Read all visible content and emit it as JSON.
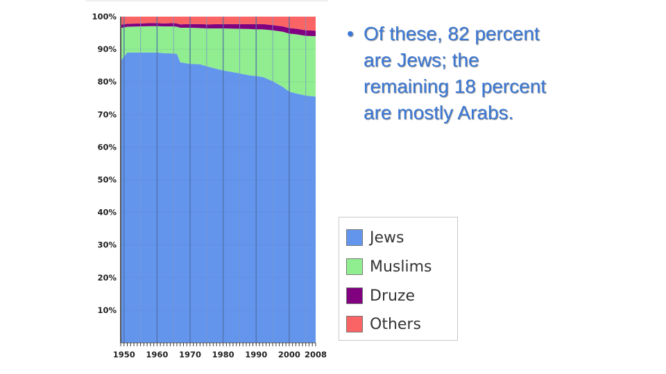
{
  "chart_data": {
    "type": "area",
    "stacked": true,
    "normalized": true,
    "x": [
      1949,
      1951,
      1955,
      1958,
      1960,
      1962,
      1965,
      1966,
      1967,
      1970,
      1973,
      1975,
      1980,
      1983,
      1988,
      1990,
      1992,
      1995,
      1998,
      2000,
      2002,
      2005,
      2008
    ],
    "series": [
      {
        "name": "Jews",
        "color": "#6495ed",
        "values": [
          86.5,
          89,
          89,
          89,
          89,
          88.8,
          88.7,
          88.6,
          86,
          85.5,
          85.4,
          84.8,
          83.5,
          83.0,
          82.0,
          81.8,
          81.5,
          80.2,
          78.5,
          77.0,
          76.5,
          75.8,
          75.5
        ]
      },
      {
        "name": "Muslims",
        "color": "#90ee90",
        "values": [
          10,
          7.9,
          8.0,
          8.1,
          8.1,
          8.2,
          8.3,
          8.3,
          10.6,
          11.1,
          11.1,
          11.6,
          12.9,
          13.3,
          14.2,
          14.3,
          14.6,
          15.6,
          16.9,
          17.8,
          18.1,
          18.3,
          18.5
        ]
      },
      {
        "name": "Druze",
        "color": "#800080",
        "values": [
          1.0,
          0.9,
          0.9,
          0.9,
          0.9,
          0.9,
          1.0,
          1.0,
          1.0,
          1.1,
          1.2,
          1.2,
          1.3,
          1.4,
          1.5,
          1.6,
          1.6,
          1.6,
          1.6,
          1.7,
          1.7,
          1.7,
          1.7
        ]
      },
      {
        "name": "Others",
        "color": "#fa6464",
        "values": [
          2.5,
          2.2,
          2.1,
          2.0,
          2.0,
          2.1,
          2.0,
          2.1,
          2.4,
          2.3,
          2.3,
          2.4,
          2.3,
          2.3,
          2.3,
          2.3,
          2.3,
          2.6,
          3.0,
          3.5,
          3.7,
          4.2,
          4.3
        ]
      }
    ],
    "y_ticks": [
      "10%",
      "20%",
      "30%",
      "40%",
      "50%",
      "60%",
      "70%",
      "80%",
      "90%",
      "100%"
    ],
    "x_ticks": [
      "1950",
      "1960",
      "1970",
      "1980",
      "1990",
      "2000",
      "2008"
    ],
    "xlim": [
      1949,
      2008
    ],
    "ylim": [
      0,
      100
    ],
    "grid": true,
    "legend_position": "right"
  },
  "legend": {
    "items": [
      {
        "label": "Jews",
        "color": "#6495ed"
      },
      {
        "label": "Muslims",
        "color": "#90ee90"
      },
      {
        "label": "Druze",
        "color": "#800080"
      },
      {
        "label": "Others",
        "color": "#fa6464"
      }
    ]
  },
  "slide": {
    "bullet": "•",
    "text": "Of these, 82 percent are Jews; the remaining 18 percent are mostly Arabs."
  }
}
